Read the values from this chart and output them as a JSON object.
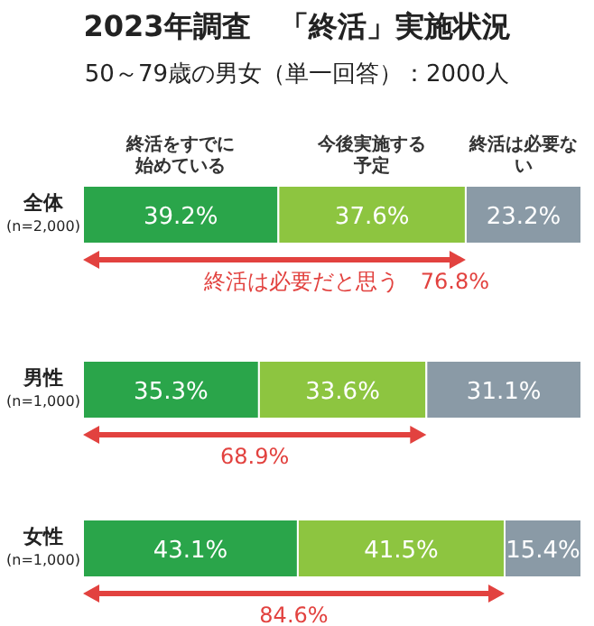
{
  "chart_data": {
    "type": "bar",
    "orientation": "horizontal",
    "stacked": true,
    "title": "2023年調査　「終活」実施状況",
    "subtitle": "50～79歳の男女（単一回答）：2000人",
    "categories": [
      "全体\n(n=2,000)",
      "男性\n(n=1,000)",
      "女性\n(n=1,000)"
    ],
    "series": [
      {
        "name": "終活をすでに始めている",
        "color": "#2aa54a",
        "values": [
          39.2,
          35.3,
          43.1
        ],
        "value_labels": [
          "39.2%",
          "35.3%",
          "43.1%"
        ]
      },
      {
        "name": "今後実施する予定",
        "color": "#8dc540",
        "values": [
          37.6,
          33.6,
          41.5
        ],
        "value_labels": [
          "37.6%",
          "33.6%",
          "41.5%"
        ]
      },
      {
        "name": "終活は必要ない",
        "color": "#8a9aa6",
        "values": [
          23.2,
          31.1,
          15.4
        ],
        "value_labels": [
          "23.2%",
          "31.1%",
          "15.4%"
        ]
      }
    ],
    "annotations": [
      "終活は必要だと思う　76.8%",
      "68.9%",
      "84.6%"
    ]
  }
}
